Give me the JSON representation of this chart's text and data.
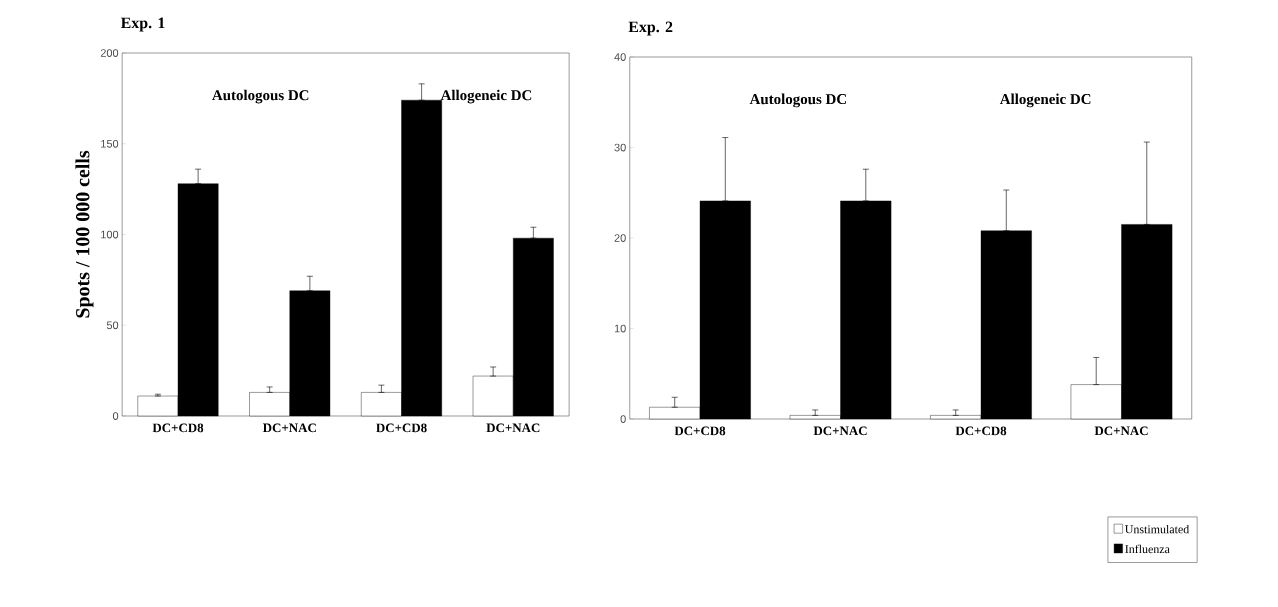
{
  "chart_data": [
    {
      "type": "bar",
      "title": "Exp. 1",
      "ylabel": "Spots / 100 000 cells",
      "categories": [
        "DC+CD8",
        "DC+NAC",
        "DC+CD8",
        "DC+NAC"
      ],
      "series": [
        {
          "color": "#ffffff",
          "values": [
            11,
            13,
            13,
            22
          ],
          "errors": [
            [
              11,
              12
            ],
            [
              13,
              16
            ],
            [
              13,
              17
            ],
            [
              22,
              27
            ]
          ]
        },
        {
          "color": "#000000",
          "values": [
            128,
            69,
            174,
            98
          ],
          "errors": [
            [
              128,
              136
            ],
            [
              69,
              77
            ],
            [
              174,
              183
            ],
            [
              98,
              104
            ]
          ]
        }
      ],
      "ylim": [
        0,
        200
      ],
      "yticks": [
        0,
        50,
        100,
        150,
        200
      ],
      "grid": false,
      "legend": false,
      "annotations": [
        "Autologous DC",
        "Allogeneic DC"
      ]
    },
    {
      "type": "bar",
      "title": "Exp. 2",
      "categories": [
        "DC+CD8",
        "DC+NAC",
        "DC+CD8",
        "DC+NAC"
      ],
      "series": [
        {
          "name": "Unstimulated",
          "color": "#ffffff",
          "values": [
            1.3,
            0.4,
            0.4,
            3.8
          ],
          "errors": [
            [
              1.3,
              2.4
            ],
            [
              0.4,
              1.0
            ],
            [
              0.4,
              1.0
            ],
            [
              3.8,
              6.8
            ]
          ]
        },
        {
          "name": "Influenza",
          "color": "#000000",
          "values": [
            24.1,
            24.1,
            20.8,
            21.5
          ],
          "errors": [
            [
              24.1,
              31.1
            ],
            [
              24.1,
              27.6
            ],
            [
              20.8,
              25.3
            ],
            [
              21.5,
              30.6
            ]
          ]
        }
      ],
      "ylim": [
        0,
        40
      ],
      "yticks": [
        0,
        10,
        20,
        30,
        40
      ],
      "grid": false,
      "legend": "bottom right",
      "annotations": [
        "Autologous DC",
        "Allogeneic DC"
      ]
    }
  ]
}
